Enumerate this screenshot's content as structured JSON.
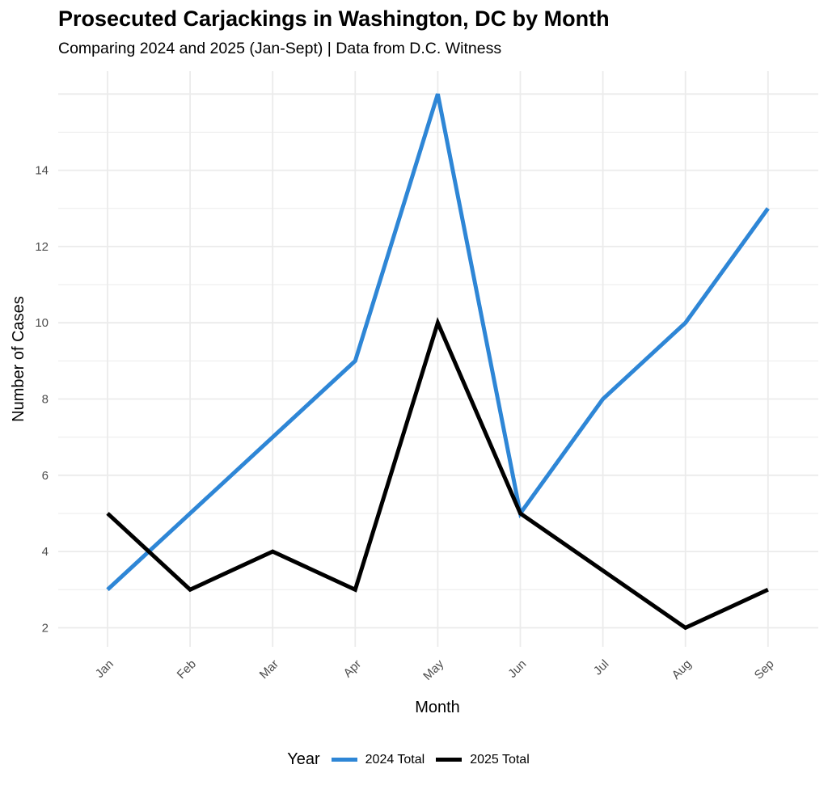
{
  "chart_data": {
    "type": "line",
    "title": "Prosecuted Carjackings in Washington, DC by Month",
    "subtitle": "Comparing 2024 and 2025 (Jan-Sept) | Data from D.C. Witness",
    "xlabel": "Month",
    "ylabel": "Number of Cases",
    "categories": [
      "Jan",
      "Feb",
      "Mar",
      "Apr",
      "May",
      "Jun",
      "Jul",
      "Aug",
      "Sep"
    ],
    "yticks": [
      2,
      4,
      6,
      8,
      10,
      12,
      14
    ],
    "ylim": [
      1.5,
      16.6
    ],
    "grid": true,
    "legend": {
      "title": "Year",
      "position": "bottom"
    },
    "series": [
      {
        "name": "2024 Total",
        "color": "#2E86D6",
        "values": [
          3,
          5,
          7,
          9,
          16,
          5,
          8,
          10,
          13
        ]
      },
      {
        "name": "2025 Total",
        "color": "#000000",
        "values": [
          5,
          3,
          4,
          3,
          10,
          5,
          3.5,
          2,
          3
        ]
      }
    ]
  }
}
